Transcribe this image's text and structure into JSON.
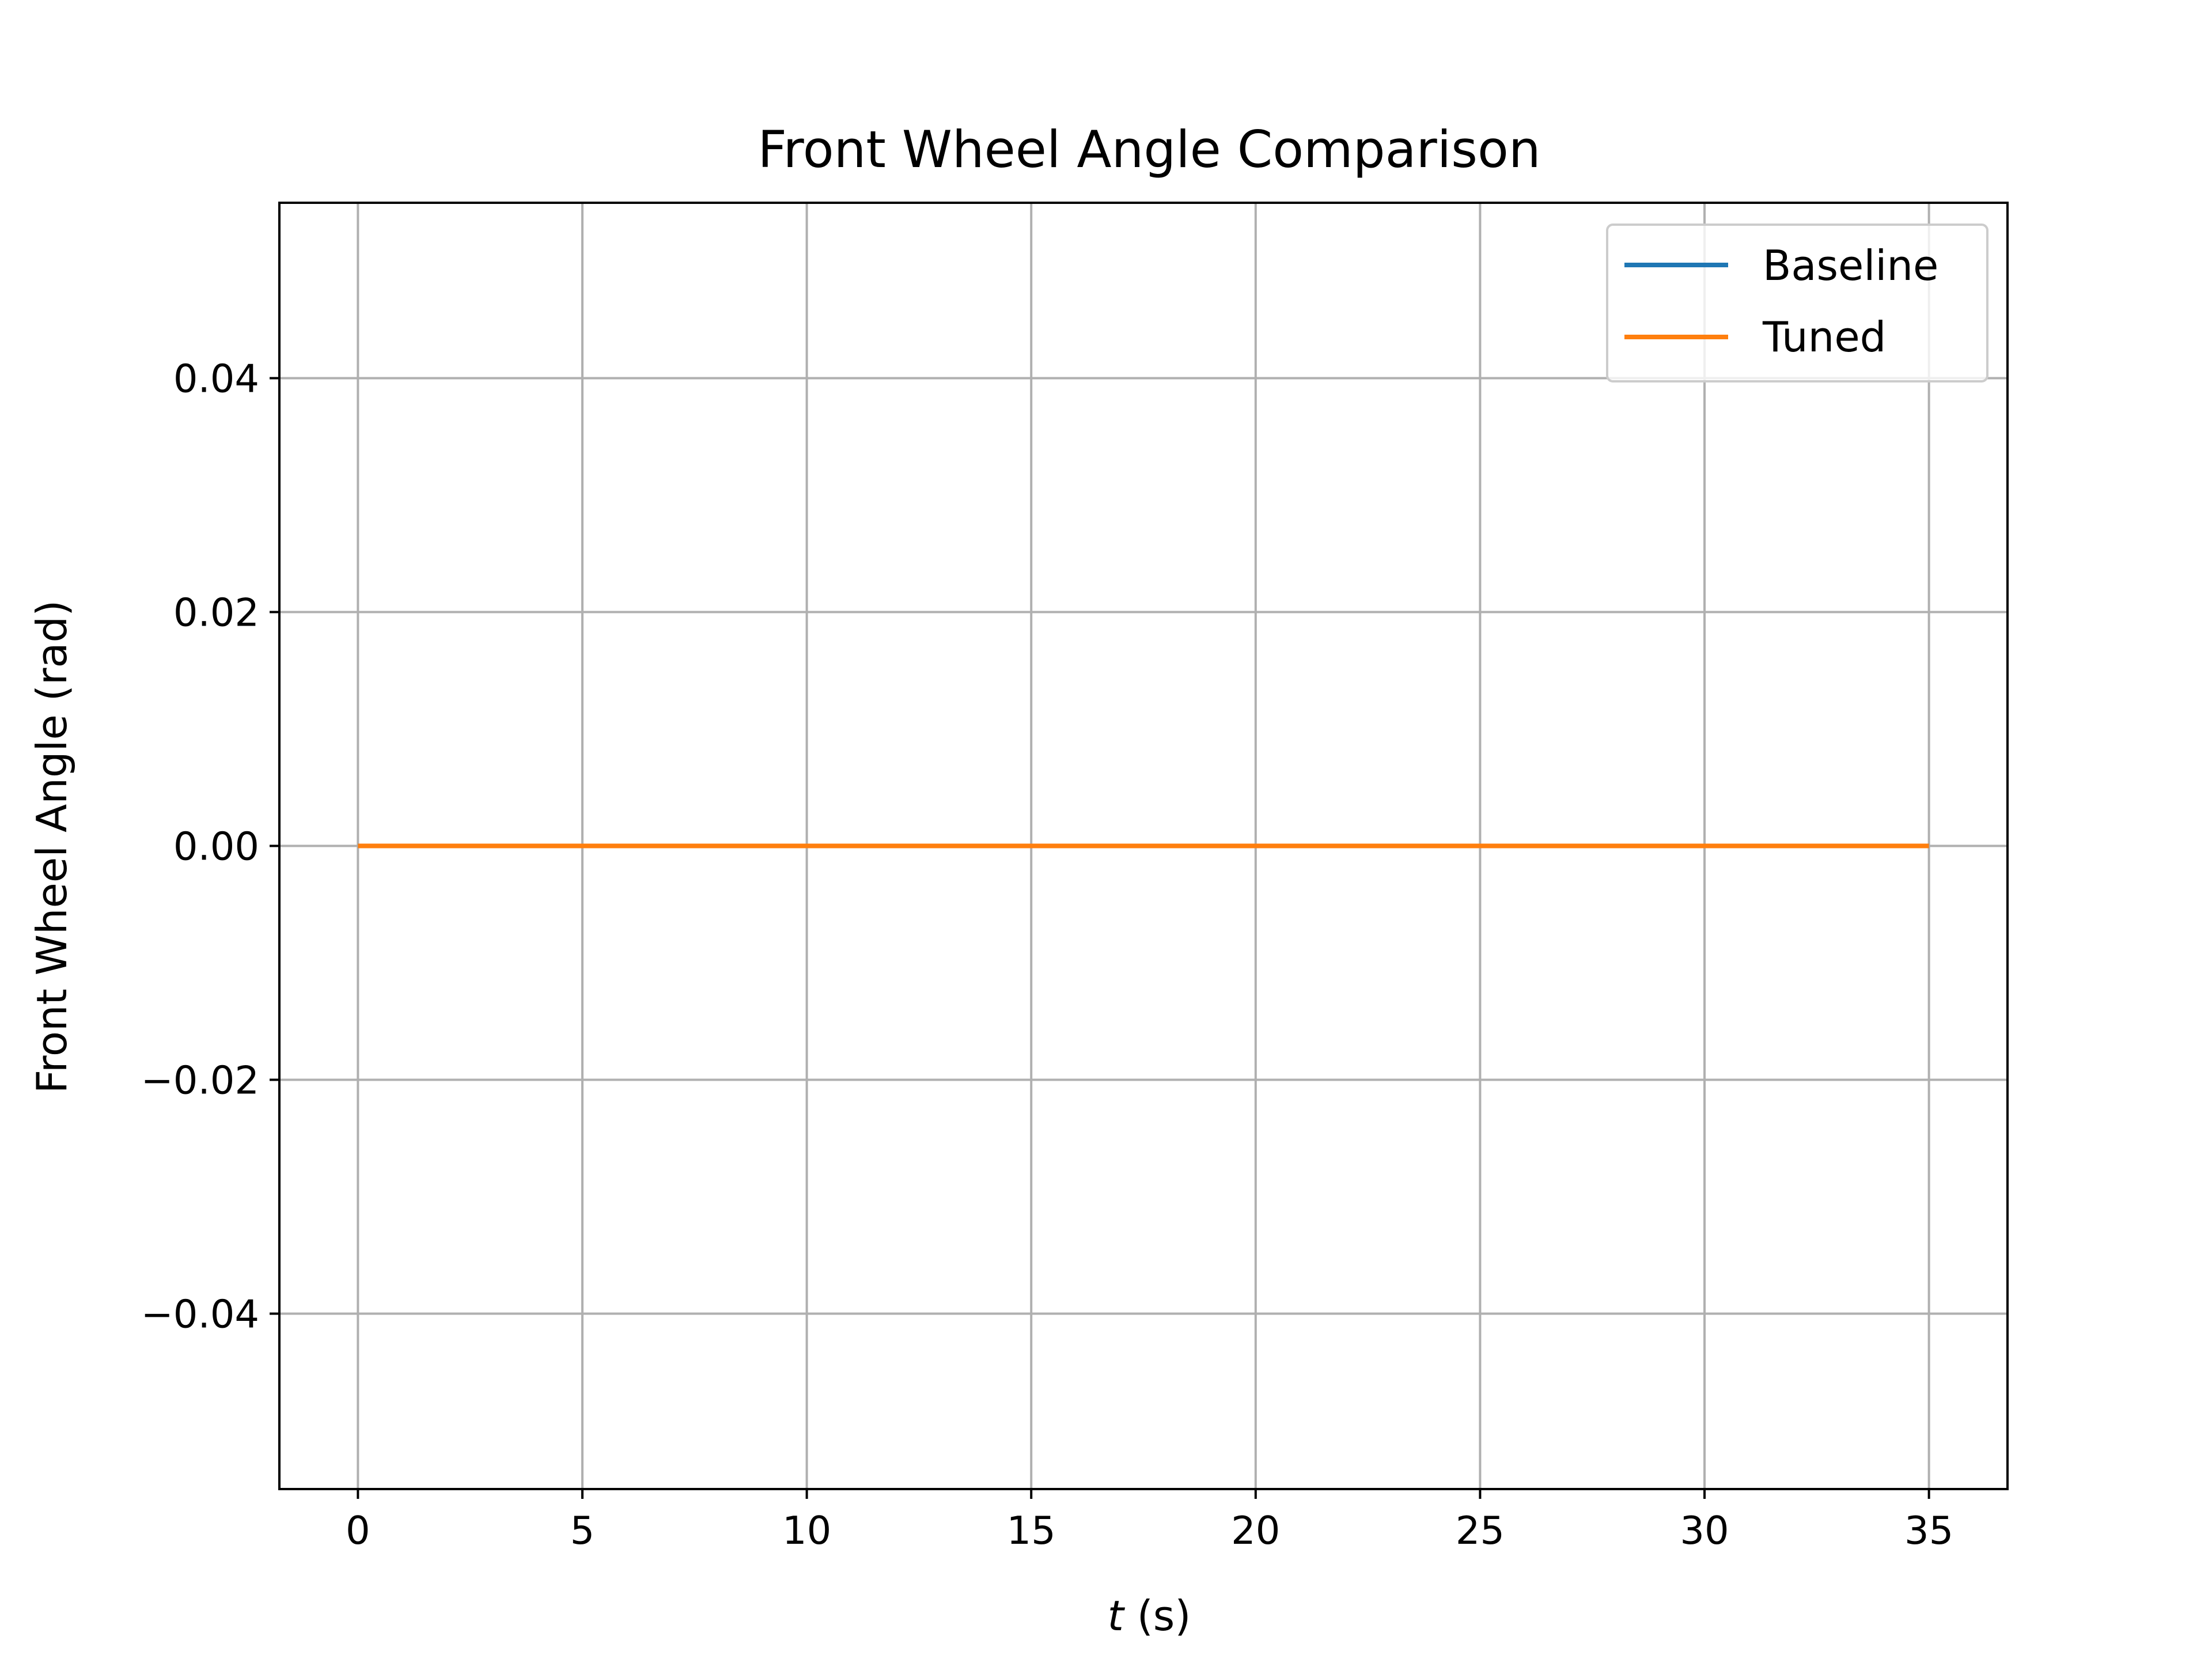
{
  "chart_data": {
    "type": "line",
    "title": "Front Wheel Angle Comparison",
    "xlabel_var": "t",
    "xlabel_unit": " (s)",
    "ylabel": "Front Wheel Angle (rad)",
    "xlim": [
      -1.75,
      36.75
    ],
    "ylim": [
      -0.055,
      0.055
    ],
    "xticks": [
      0,
      5,
      10,
      15,
      20,
      25,
      30,
      35
    ],
    "xtick_labels": [
      "0",
      "5",
      "10",
      "15",
      "20",
      "25",
      "30",
      "35"
    ],
    "yticks": [
      -0.04,
      -0.02,
      0.0,
      0.02,
      0.04
    ],
    "ytick_labels": [
      "−0.04",
      "−0.02",
      "0.00",
      "0.02",
      "0.04"
    ],
    "grid": true,
    "legend_position": "top-right",
    "series": [
      {
        "name": "Baseline",
        "color": "#1f77b4",
        "x": [
          0,
          35
        ],
        "y": [
          0.0,
          0.0
        ]
      },
      {
        "name": "Tuned",
        "color": "#ff7f0e",
        "x": [
          0,
          35
        ],
        "y": [
          0.0,
          0.0
        ]
      }
    ]
  }
}
